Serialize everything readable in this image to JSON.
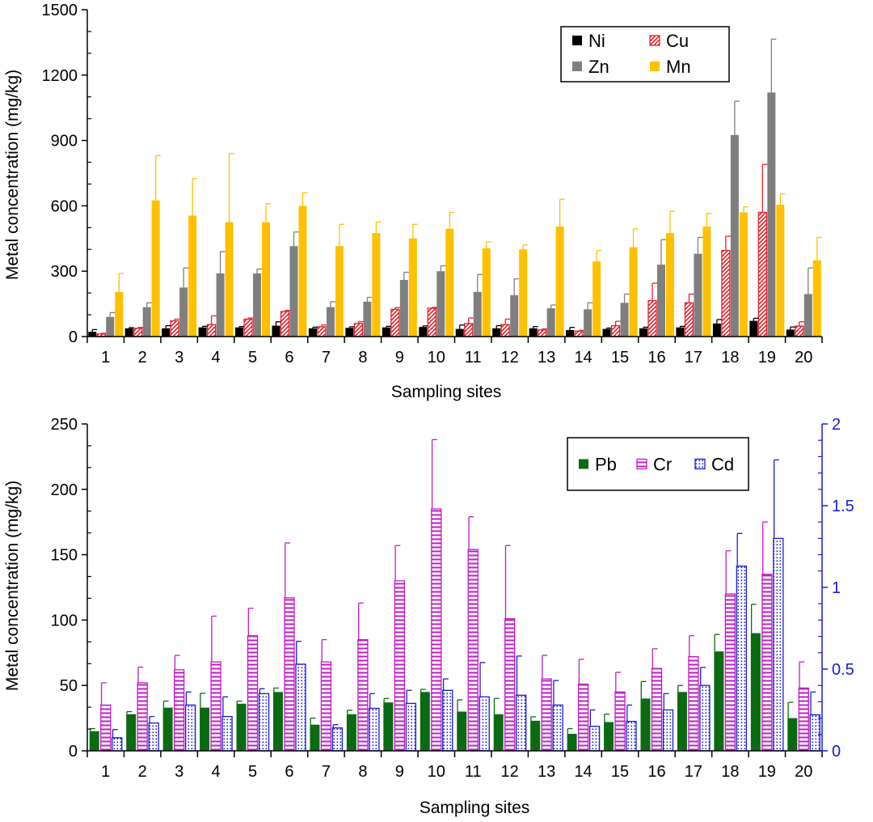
{
  "chart_data": [
    {
      "type": "bar",
      "xlabel": "Sampling sites",
      "ylabel": "Metal concentration (mg/kg)",
      "ylim": [
        0,
        1500
      ],
      "yticks": [
        "0",
        "300",
        "600",
        "900",
        "1200",
        "1500"
      ],
      "categories": [
        "1",
        "2",
        "3",
        "4",
        "5",
        "6",
        "7",
        "8",
        "9",
        "10",
        "11",
        "12",
        "13",
        "14",
        "15",
        "16",
        "17",
        "18",
        "19",
        "20"
      ],
      "legend": {
        "placement": "top-right",
        "columns": 2
      },
      "series": [
        {
          "name": "Ni",
          "style": "solid",
          "color": "#000000",
          "values": [
            22,
            38,
            38,
            42,
            42,
            50,
            38,
            40,
            42,
            44,
            35,
            38,
            38,
            30,
            35,
            38,
            42,
            60,
            72,
            32
          ],
          "errors": [
            10,
            3,
            12,
            5,
            4,
            18,
            5,
            5,
            5,
            5,
            18,
            12,
            8,
            12,
            4,
            5,
            5,
            18,
            12,
            12
          ]
        },
        {
          "name": "Cu",
          "style": "hatch",
          "color": "#e8202a",
          "values": [
            12,
            38,
            72,
            55,
            80,
            115,
            45,
            60,
            125,
            130,
            60,
            55,
            30,
            25,
            50,
            165,
            155,
            395,
            570,
            48
          ],
          "errors": [
            3,
            4,
            8,
            40,
            5,
            5,
            8,
            8,
            8,
            4,
            25,
            25,
            5,
            3,
            20,
            80,
            40,
            65,
            220,
            20
          ]
        },
        {
          "name": "Zn",
          "style": "solid",
          "color": "#7f7f7f",
          "values": [
            90,
            135,
            225,
            290,
            290,
            415,
            135,
            160,
            260,
            300,
            205,
            190,
            130,
            125,
            155,
            330,
            380,
            925,
            1120,
            195
          ],
          "errors": [
            20,
            20,
            90,
            100,
            20,
            65,
            25,
            20,
            35,
            25,
            80,
            75,
            15,
            30,
            40,
            115,
            75,
            155,
            245,
            120
          ]
        },
        {
          "name": "Mn",
          "style": "solid",
          "color": "#ffc000",
          "values": [
            205,
            625,
            555,
            525,
            525,
            600,
            415,
            475,
            450,
            495,
            405,
            400,
            505,
            345,
            410,
            475,
            505,
            570,
            605,
            350
          ],
          "errors": [
            85,
            205,
            170,
            315,
            85,
            60,
            100,
            50,
            65,
            75,
            30,
            20,
            125,
            50,
            85,
            100,
            60,
            25,
            50,
            105
          ]
        }
      ]
    },
    {
      "type": "bar",
      "xlabel": "Sampling sites",
      "ylabel": "Metal concentration (mg/kg)",
      "ylim": [
        0,
        250
      ],
      "yticks": [
        "0",
        "50",
        "100",
        "150",
        "200",
        "250"
      ],
      "y2lim": [
        0,
        2
      ],
      "y2ticks": [
        "0",
        "0.5",
        "1",
        "1.5",
        "2"
      ],
      "y2color": "#1a1ad8",
      "categories": [
        "1",
        "2",
        "3",
        "4",
        "5",
        "6",
        "7",
        "8",
        "9",
        "10",
        "11",
        "12",
        "13",
        "14",
        "15",
        "16",
        "17",
        "18",
        "19",
        "20"
      ],
      "legend": {
        "placement": "top-right",
        "columns": 3
      },
      "series": [
        {
          "name": "Pb",
          "style": "solid",
          "color": "#0a6b12",
          "axis": "left",
          "values": [
            15,
            28,
            33,
            33,
            36,
            45,
            20,
            28,
            37,
            45,
            30,
            28,
            23,
            13,
            22,
            40,
            45,
            76,
            90,
            25
          ],
          "errors": [
            2,
            2,
            5,
            11,
            2,
            3,
            5,
            3,
            3,
            2,
            9,
            12,
            3,
            4,
            6,
            13,
            5,
            13,
            22,
            12
          ]
        },
        {
          "name": "Cr",
          "style": "hlines",
          "color": "#c21bc8",
          "axis": "left",
          "values": [
            35,
            52,
            62,
            68,
            88,
            117,
            68,
            85,
            130,
            185,
            154,
            101,
            55,
            51,
            45,
            63,
            72,
            120,
            135,
            48
          ],
          "errors": [
            17,
            12,
            11,
            35,
            21,
            42,
            17,
            28,
            27,
            53,
            25,
            56,
            18,
            19,
            15,
            15,
            16,
            33,
            40,
            20
          ]
        },
        {
          "name": "Cd",
          "style": "dots",
          "color": "#1a1ad8",
          "axis": "right",
          "values": [
            0.08,
            0.17,
            0.28,
            0.21,
            0.35,
            0.53,
            0.14,
            0.26,
            0.29,
            0.37,
            0.33,
            0.34,
            0.28,
            0.15,
            0.18,
            0.25,
            0.4,
            1.13,
            1.3,
            0.22
          ],
          "errors": [
            0.05,
            0.04,
            0.08,
            0.12,
            0.03,
            0.14,
            0.02,
            0.09,
            0.08,
            0.07,
            0.21,
            0.24,
            0.15,
            0.1,
            0.1,
            0.1,
            0.11,
            0.2,
            0.48,
            0.14
          ]
        }
      ]
    }
  ]
}
